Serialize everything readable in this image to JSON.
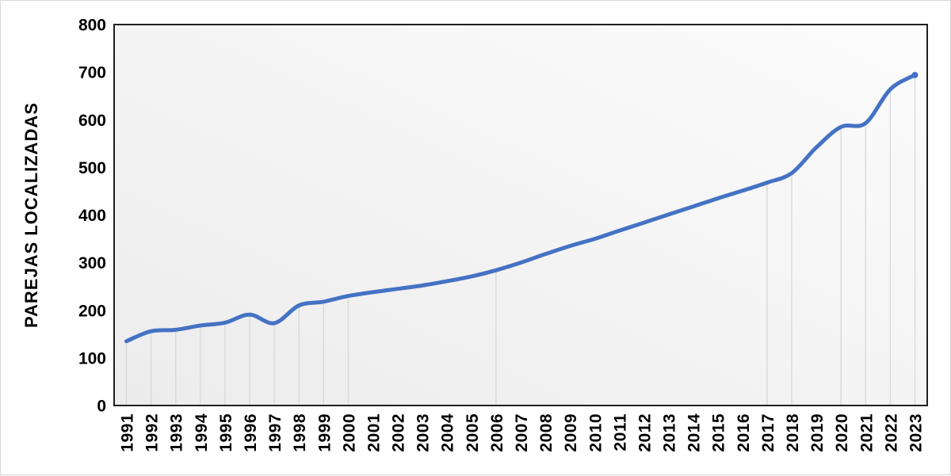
{
  "chart_data": {
    "type": "line",
    "title": "",
    "xlabel": "",
    "ylabel": "PAREJAS LOCALIZADAS",
    "legend_position": "none",
    "grid": false,
    "smoothed": true,
    "categories": [
      "1991",
      "1992",
      "1993",
      "1994",
      "1995",
      "1996",
      "1997",
      "1998",
      "1999",
      "2000",
      "2001",
      "2002",
      "2003",
      "2004",
      "2005",
      "2006",
      "2007",
      "2008",
      "2009",
      "2010",
      "2011",
      "2012",
      "2013",
      "2014",
      "2015",
      "2016",
      "2017",
      "2018",
      "2019",
      "2020",
      "2021",
      "2022",
      "2023"
    ],
    "series": [
      {
        "name": "PAREJAS LOCALIZADAS",
        "values": [
          135,
          156,
          159,
          168,
          174,
          191,
          173,
          210,
          218,
          230,
          238,
          245,
          252,
          261,
          271,
          284,
          300,
          318,
          335,
          350,
          367,
          384,
          401,
          418,
          435,
          451,
          468,
          488,
          542,
          585,
          593,
          664,
          694
        ]
      }
    ],
    "ylim": [
      0,
      800
    ],
    "yticks": [
      0,
      100,
      200,
      300,
      400,
      500,
      600,
      700,
      800
    ],
    "drop_line_categories": [
      "1991",
      "1992",
      "1993",
      "1994",
      "1995",
      "1996",
      "1997",
      "1998",
      "1999",
      "2000",
      "2006",
      "2017",
      "2018",
      "2020",
      "2021",
      "2022",
      "2023"
    ],
    "colors": {
      "line": "#4472C4",
      "drop_line": "#d9d9d9",
      "axis_frame": "#1f1f1f",
      "tick_text": "#000000",
      "plot_bg_from": "#ececec",
      "plot_bg_to": "#fcfcfc",
      "page_bg": "#ffffff",
      "page_border": "#d9d9d9"
    }
  }
}
